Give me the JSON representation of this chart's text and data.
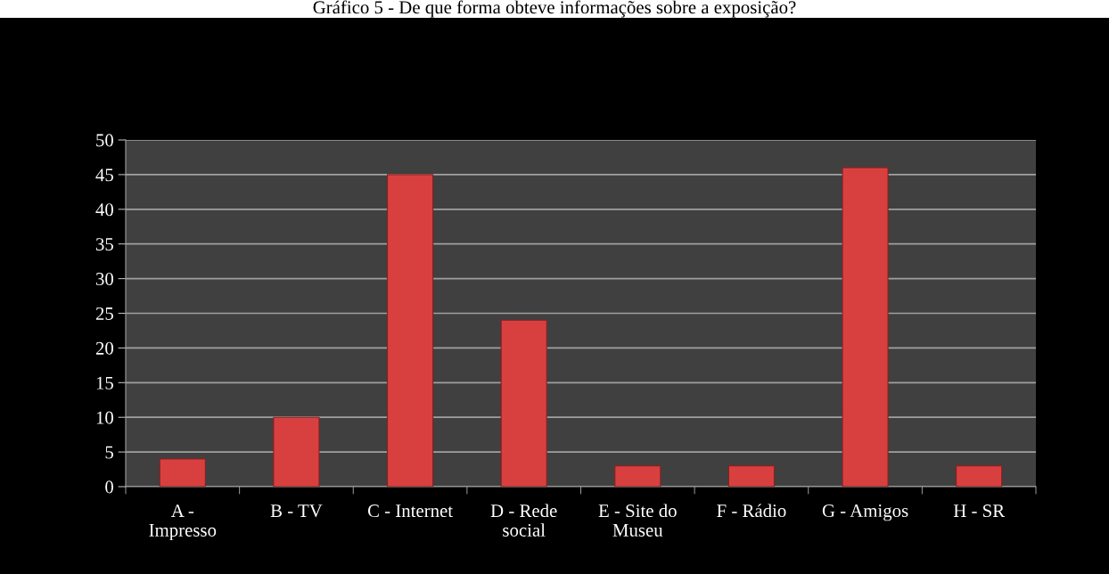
{
  "chart_data": {
    "type": "bar",
    "title": "Gráfico 5 - De que forma obteve informações sobre a exposição?",
    "categories": [
      "A -\nImpresso",
      "B - TV",
      "C - Internet",
      "D - Rede\nsocial",
      "E - Site do\nMuseu",
      "F - Rádio",
      "G - Amigos",
      "H - SR"
    ],
    "values": [
      4,
      10,
      45,
      24,
      3,
      3,
      46,
      3
    ],
    "color": "#d84040",
    "ylim": [
      0,
      50
    ],
    "yticks": [
      0,
      5,
      10,
      15,
      20,
      25,
      30,
      35,
      40,
      45,
      50
    ],
    "grid": "y"
  }
}
